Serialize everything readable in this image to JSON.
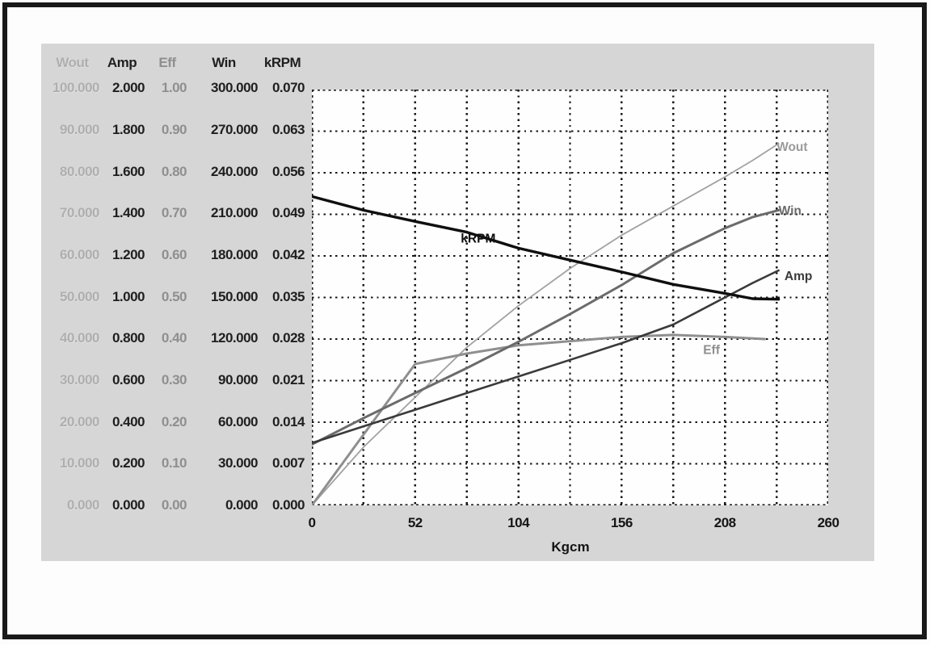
{
  "colors": {
    "frame": "#191919",
    "panel_bg": "#d6d6d6",
    "plot_bg": "#fefefe",
    "grid": "#161616"
  },
  "scale_table": {
    "headers": [
      "Wout",
      "Amp",
      "Eff",
      "Win",
      "kRPM"
    ],
    "column_styles": [
      "faded",
      "dark",
      "mid",
      "dark",
      "dark"
    ],
    "rows": [
      [
        "100.000",
        "2.000",
        "1.00",
        "300.000",
        "0.070"
      ],
      [
        "90.000",
        "1.800",
        "0.90",
        "270.000",
        "0.063"
      ],
      [
        "80.000",
        "1.600",
        "0.80",
        "240.000",
        "0.056"
      ],
      [
        "70.000",
        "1.400",
        "0.70",
        "210.000",
        "0.049"
      ],
      [
        "60.000",
        "1.200",
        "0.60",
        "180.000",
        "0.042"
      ],
      [
        "50.000",
        "1.000",
        "0.50",
        "150.000",
        "0.035"
      ],
      [
        "40.000",
        "0.800",
        "0.40",
        "120.000",
        "0.028"
      ],
      [
        "30.000",
        "0.600",
        "0.30",
        "90.000",
        "0.021"
      ],
      [
        "20.000",
        "0.400",
        "0.20",
        "60.000",
        "0.014"
      ],
      [
        "10.000",
        "0.200",
        "0.10",
        "30.000",
        "0.007"
      ],
      [
        "0.000",
        "0.000",
        "0.00",
        "0.000",
        "0.000"
      ]
    ]
  },
  "chart_data": {
    "type": "line",
    "title": "",
    "xlabel": "Kgcm",
    "xlim": [
      0,
      260
    ],
    "xticks": [
      "0",
      "52",
      "104",
      "156",
      "208",
      "260"
    ],
    "x_minor_step": 26,
    "y_divisions": 10,
    "grid": "dotted",
    "legend_position": "labels-on-curves",
    "series": [
      {
        "name": "Wout",
        "axis_max": 100,
        "color": "#a2a2a2",
        "width": 1.8,
        "x": [
          0,
          26,
          52,
          78,
          104,
          130,
          156,
          182,
          208,
          222,
          235
        ],
        "values": [
          0,
          14,
          26,
          38,
          48,
          57,
          65,
          72,
          79,
          83,
          87
        ],
        "label": {
          "text": "Wout",
          "x": 234,
          "value": 86
        }
      },
      {
        "name": "Eff",
        "axis_max": 1,
        "color": "#8f8f8f",
        "width": 3,
        "x": [
          0,
          26,
          52,
          78,
          104,
          130,
          156,
          182,
          208,
          228
        ],
        "values": [
          0,
          0.17,
          0.34,
          0.365,
          0.385,
          0.395,
          0.405,
          0.41,
          0.405,
          0.4
        ],
        "label": {
          "text": "Eff",
          "x": 197,
          "value": 0.372
        }
      },
      {
        "name": "Win",
        "axis_max": 300,
        "color": "#6b6b6b",
        "width": 3,
        "x": [
          0,
          26,
          52,
          78,
          104,
          130,
          156,
          182,
          208,
          222,
          235
        ],
        "values": [
          44,
          63,
          81,
          99,
          118,
          138,
          159,
          182,
          200,
          208,
          213
        ],
        "label": {
          "text": "Win",
          "x": 235,
          "value": 212
        }
      },
      {
        "name": "Amp",
        "axis_max": 2,
        "color": "#3a3a3a",
        "width": 2.6,
        "x": [
          0,
          26,
          52,
          78,
          104,
          130,
          156,
          182,
          208,
          222,
          235
        ],
        "values": [
          0.3,
          0.38,
          0.46,
          0.54,
          0.62,
          0.7,
          0.78,
          0.87,
          1.0,
          1.07,
          1.13
        ],
        "label": {
          "text": "Amp",
          "x": 238,
          "value": 1.1
        }
      },
      {
        "name": "kRPM",
        "axis_max": 0.07,
        "color": "#0f0f0f",
        "width": 3.4,
        "x": [
          0,
          26,
          52,
          78,
          104,
          130,
          156,
          182,
          208,
          222,
          235
        ],
        "values": [
          0.052,
          0.0497,
          0.0478,
          0.046,
          0.0433,
          0.0413,
          0.0393,
          0.0372,
          0.0357,
          0.0348,
          0.0347
        ],
        "label": {
          "text": "kRPM",
          "x": 75,
          "value": 0.0448
        }
      }
    ]
  }
}
